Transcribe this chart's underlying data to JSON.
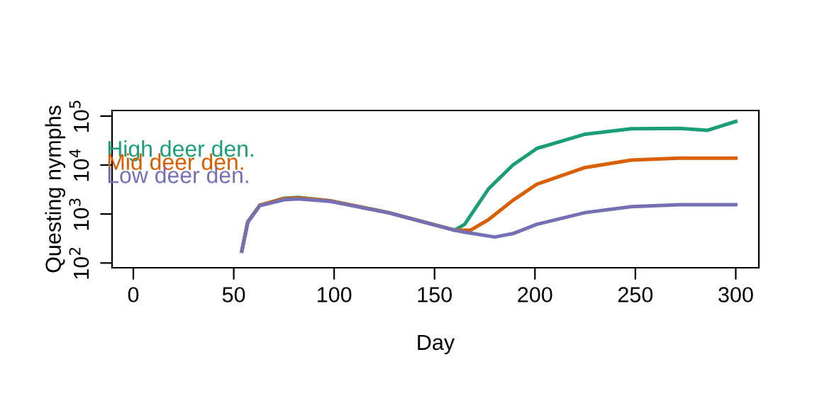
{
  "chart_data": {
    "type": "line",
    "xlabel": "Day",
    "ylabel": "Questing nymphs",
    "log": "y",
    "xlim": [
      -10.6,
      311.5
    ],
    "ylim": [
      80,
      130000
    ],
    "xticks": [
      0,
      50,
      100,
      150,
      200,
      250,
      300
    ],
    "yticks": [
      {
        "value": 100,
        "label": "10$^{2}$"
      },
      {
        "value": 1000,
        "label": "10$^{3}$"
      },
      {
        "value": 10000,
        "label": "10$^{4}$"
      },
      {
        "value": 100000,
        "label": "10$^{5}$"
      }
    ],
    "grid": false,
    "legend": "left",
    "line_style": "solid",
    "series": [
      {
        "name": "High deer den.",
        "color": "#1b9e77",
        "x": [
          54,
          57,
          63,
          75,
          82,
          98,
          127,
          160,
          165,
          177,
          189,
          201,
          225,
          248,
          272,
          286,
          300
        ],
        "values": [
          174,
          692,
          1510,
          2090,
          2190,
          1860,
          1070,
          468,
          617,
          3310,
          10000,
          21900,
          42700,
          55000,
          56200,
          51300,
          77600
        ]
      },
      {
        "name": "Mid deer den.",
        "color": "#d95f02",
        "x": [
          54,
          57,
          63,
          75,
          82,
          98,
          127,
          160,
          168,
          177,
          189,
          201,
          225,
          248,
          272,
          300
        ],
        "values": [
          174,
          692,
          1510,
          2040,
          2140,
          1860,
          1070,
          468,
          468,
          776,
          1900,
          4070,
          8910,
          12600,
          13800,
          13800
        ]
      },
      {
        "name": "Low deer den.",
        "color": "#7570b3",
        "x": [
          54,
          57,
          63,
          75,
          82,
          98,
          127,
          160,
          165,
          180,
          189,
          201,
          225,
          248,
          272,
          300
        ],
        "values": [
          174,
          680,
          1480,
          1950,
          2040,
          1820,
          1060,
          468,
          427,
          339,
          398,
          617,
          1070,
          1410,
          1550,
          1550
        ]
      }
    ]
  }
}
